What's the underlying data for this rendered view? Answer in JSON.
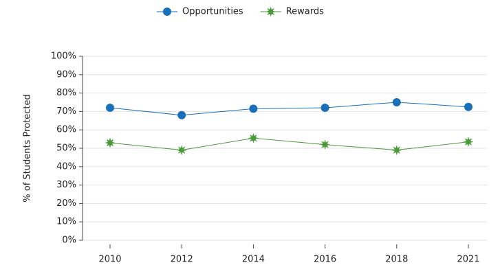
{
  "chart_data": {
    "type": "line",
    "y_label": "% of Students Protected",
    "categories": [
      "2010",
      "2012",
      "2014",
      "2016",
      "2018",
      "2021"
    ],
    "series": [
      {
        "name": "Opportunities",
        "color": "#1a6fba",
        "marker": "circle",
        "values": [
          72,
          68,
          71.5,
          72,
          75,
          72.5
        ]
      },
      {
        "name": "Rewards",
        "color": "#4a9a3a",
        "marker": "star",
        "values": [
          53,
          49,
          55.5,
          52,
          49,
          53.5
        ]
      }
    ],
    "ylim": [
      0,
      100
    ],
    "yticks": [
      {
        "value": 0,
        "label": "0%"
      },
      {
        "value": 10,
        "label": "10%"
      },
      {
        "value": 20,
        "label": "20%"
      },
      {
        "value": 30,
        "label": "30%"
      },
      {
        "value": 40,
        "label": "40%"
      },
      {
        "value": 50,
        "label": "50%"
      },
      {
        "value": 60,
        "label": "60%"
      },
      {
        "value": 70,
        "label": "70%"
      },
      {
        "value": 80,
        "label": "80%"
      },
      {
        "value": 90,
        "label": "90%"
      },
      {
        "value": 100,
        "label": "100%"
      }
    ],
    "grid": true,
    "legend": "top"
  }
}
